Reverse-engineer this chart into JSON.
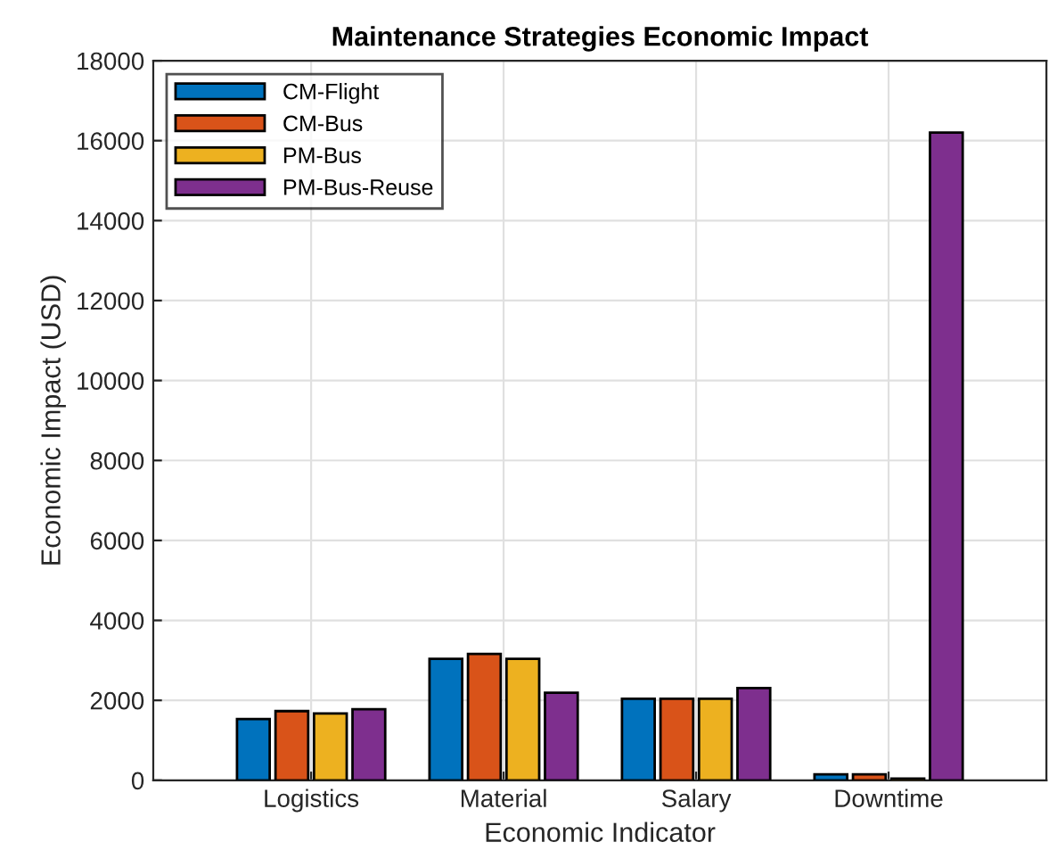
{
  "chart_data": {
    "type": "bar",
    "title": "Maintenance Strategies Economic Impact",
    "xlabel": "Economic Indicator",
    "ylabel": "Economic Impact (USD)",
    "categories": [
      "Logistics",
      "Material",
      "Salary",
      "Downtime"
    ],
    "series": [
      {
        "name": "CM-Flight",
        "color": "#0072bd",
        "values": [
          1530,
          3040,
          2040,
          150
        ]
      },
      {
        "name": "CM-Bus",
        "color": "#d95319",
        "values": [
          1730,
          3160,
          2040,
          150
        ]
      },
      {
        "name": "PM-Bus",
        "color": "#edb120",
        "values": [
          1670,
          3040,
          2040,
          40
        ]
      },
      {
        "name": "PM-Bus-Reuse",
        "color": "#7e2f8e",
        "values": [
          1780,
          2190,
          2310,
          16200
        ]
      }
    ],
    "ylim": [
      0,
      18000
    ],
    "yticks": [
      0,
      2000,
      4000,
      6000,
      8000,
      10000,
      12000,
      14000,
      16000,
      18000
    ],
    "grid": true,
    "legend": "top left"
  }
}
